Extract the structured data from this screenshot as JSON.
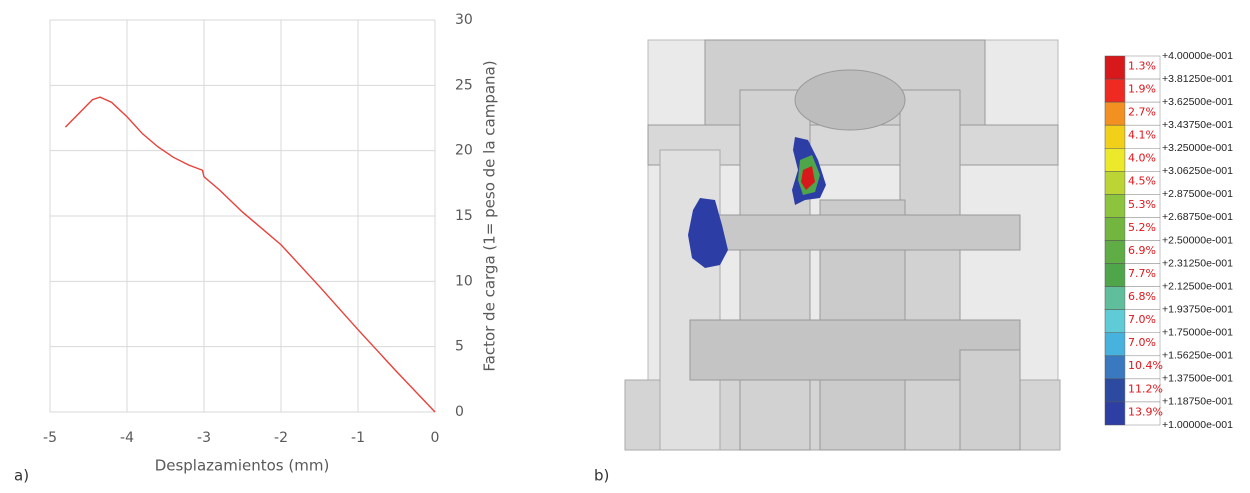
{
  "chart_data": {
    "type": "line",
    "x_label": "Desplazamientos (mm)",
    "y_label": "Factor de carga (1= peso de la campana)",
    "x": [
      -4.8,
      -4.6,
      -4.45,
      -4.35,
      -4.2,
      -4.0,
      -3.8,
      -3.6,
      -3.4,
      -3.2,
      -3.02,
      -3.0,
      -2.8,
      -2.5,
      -2.0,
      -1.5,
      -1.0,
      -0.5,
      0
    ],
    "values": [
      21.8,
      23.0,
      23.9,
      24.1,
      23.7,
      22.6,
      21.3,
      20.3,
      19.5,
      18.9,
      18.5,
      18.0,
      17.0,
      15.3,
      12.8,
      9.6,
      6.3,
      3.1,
      0
    ],
    "color": "#e8413a",
    "xlim": [
      -5,
      0
    ],
    "xticks": [
      -5,
      -4,
      -3,
      -2,
      -1,
      0
    ],
    "ylim": [
      0,
      30
    ],
    "yticks": [
      0,
      5,
      10,
      15,
      20,
      25,
      30
    ],
    "grid": true,
    "y_axis_side": "right"
  },
  "panel_labels": [
    "a)",
    "b)"
  ],
  "contour_legend": {
    "levels": [
      "+4.00000e-001",
      "+3.81250e-001",
      "+3.62500e-001",
      "+3.43750e-001",
      "+3.25000e-001",
      "+3.06250e-001",
      "+2.87500e-001",
      "+2.68750e-001",
      "+2.50000e-001",
      "+2.31250e-001",
      "+2.12500e-001",
      "+1.93750e-001",
      "+1.75000e-001",
      "+1.56250e-001",
      "+1.37500e-001",
      "+1.18750e-001",
      "+1.00000e-001"
    ],
    "percentages": [
      "1.3%",
      "1.9%",
      "2.7%",
      "4.1%",
      "4.0%",
      "4.5%",
      "5.3%",
      "5.2%",
      "6.9%",
      "7.7%",
      "6.8%",
      "7.0%",
      "7.0%",
      "10.4%",
      "11.2%",
      "13.9%"
    ],
    "colors": [
      "#d7191c",
      "#ee2a22",
      "#f39022",
      "#f2d019",
      "#ece92a",
      "#bcd534",
      "#8cc43e",
      "#72b640",
      "#5fad44",
      "#4fa64a",
      "#5fbf9c",
      "#5ecbd6",
      "#48b2df",
      "#3a79bf",
      "#2b4aa0",
      "#2e3fa4"
    ]
  }
}
